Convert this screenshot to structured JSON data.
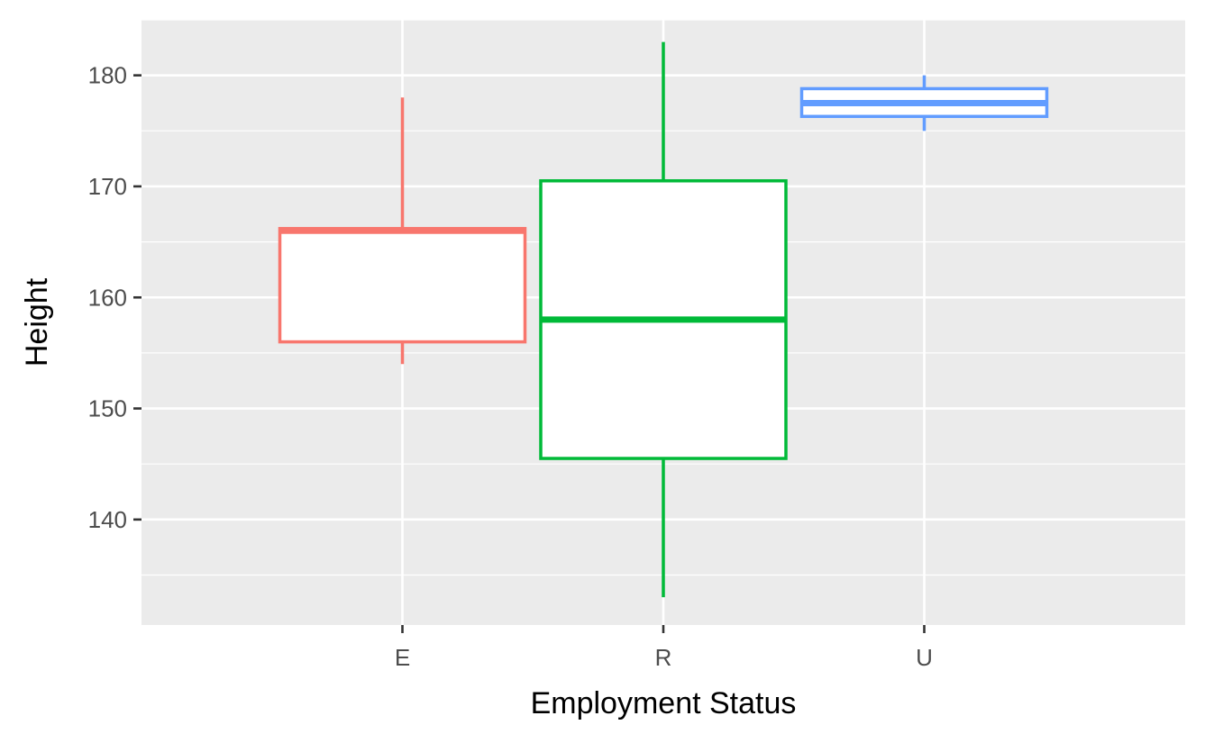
{
  "chart_data": {
    "type": "boxplot",
    "title": "",
    "xlabel": "Employment Status",
    "ylabel": "Height",
    "ylim": [
      130.5,
      185
    ],
    "y_ticks": [
      140,
      150,
      160,
      170,
      180
    ],
    "y_tick_labels": [
      "140",
      "150",
      "160",
      "170",
      "180"
    ],
    "categories": [
      "E",
      "R",
      "U"
    ],
    "colors": [
      "#F8766D",
      "#00BA38",
      "#619CFF"
    ],
    "boxes": [
      {
        "category": "E",
        "min": 154,
        "q1": 156,
        "median": 166,
        "q3": 166.2,
        "max": 178
      },
      {
        "category": "R",
        "min": 133,
        "q1": 145.5,
        "median": 158,
        "q3": 170.5,
        "max": 183
      },
      {
        "category": "U",
        "min": 175,
        "q1": 176.3,
        "median": 177.5,
        "q3": 178.8,
        "max": 180
      }
    ],
    "grid": true,
    "legend": "none"
  }
}
